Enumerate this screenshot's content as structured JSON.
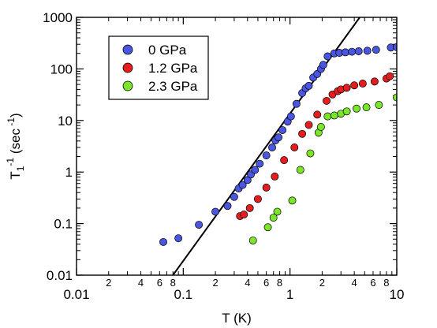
{
  "chart_data": {
    "type": "scatter",
    "xscale": "log",
    "yscale": "log",
    "xlim": [
      0.01,
      10
    ],
    "ylim": [
      0.01,
      1000
    ],
    "xlabel": "T (K)",
    "ylabel": {
      "base": "T",
      "subscript": "1",
      "superscript": "-1",
      "unit_open": "(sec",
      "unit_super": "-1",
      "unit_close": ")"
    },
    "x_major_ticks": [
      {
        "value": 0.01,
        "label": "0.01"
      },
      {
        "value": 0.1,
        "label": "0.1"
      },
      {
        "value": 1,
        "label": "1"
      },
      {
        "value": 10,
        "label": "10"
      }
    ],
    "x_minor_ticks": [
      {
        "value": 0.02,
        "label": "2"
      },
      {
        "value": 0.04,
        "label": "4"
      },
      {
        "value": 0.06,
        "label": "6"
      },
      {
        "value": 0.08,
        "label": "8"
      },
      {
        "value": 0.2,
        "label": "2"
      },
      {
        "value": 0.4,
        "label": "4"
      },
      {
        "value": 0.6,
        "label": "6"
      },
      {
        "value": 0.8,
        "label": "8"
      },
      {
        "value": 2,
        "label": "2"
      },
      {
        "value": 4,
        "label": "4"
      },
      {
        "value": 6,
        "label": "6"
      },
      {
        "value": 8,
        "label": "8"
      }
    ],
    "y_major_ticks": [
      {
        "value": 0.01,
        "label": "0.01"
      },
      {
        "value": 0.1,
        "label": "0.1"
      },
      {
        "value": 1,
        "label": "1"
      },
      {
        "value": 10,
        "label": "10"
      },
      {
        "value": 100,
        "label": "100"
      },
      {
        "value": 1000,
        "label": "1000"
      }
    ],
    "grid": false,
    "legend_position": "top-left",
    "series": [
      {
        "name": "0 GPa",
        "color": "#4a56e0",
        "points": [
          [
            0.065,
            0.044
          ],
          [
            0.09,
            0.052
          ],
          [
            0.14,
            0.095
          ],
          [
            0.2,
            0.17
          ],
          [
            0.26,
            0.22
          ],
          [
            0.3,
            0.33
          ],
          [
            0.33,
            0.48
          ],
          [
            0.36,
            0.56
          ],
          [
            0.4,
            0.7
          ],
          [
            0.43,
            0.9
          ],
          [
            0.47,
            1.1
          ],
          [
            0.52,
            1.45
          ],
          [
            0.6,
            2.1
          ],
          [
            0.68,
            3.0
          ],
          [
            0.73,
            4.1
          ],
          [
            0.78,
            4.7
          ],
          [
            0.85,
            6.5
          ],
          [
            0.95,
            9.5
          ],
          [
            1.02,
            12
          ],
          [
            1.15,
            21
          ],
          [
            1.3,
            34
          ],
          [
            1.4,
            42
          ],
          [
            1.5,
            47
          ],
          [
            1.65,
            68
          ],
          [
            1.8,
            80
          ],
          [
            1.95,
            100
          ],
          [
            2.05,
            120
          ],
          [
            2.25,
            175
          ],
          [
            2.6,
            200
          ],
          [
            2.9,
            205
          ],
          [
            3.3,
            210
          ],
          [
            3.8,
            215
          ],
          [
            4.4,
            220
          ],
          [
            5.3,
            225
          ],
          [
            6.4,
            235
          ],
          [
            8.8,
            260
          ],
          [
            10.0,
            265
          ]
        ]
      },
      {
        "name": "1.2 GPa",
        "color": "#e41e1e",
        "points": [
          [
            0.34,
            0.14
          ],
          [
            0.37,
            0.15
          ],
          [
            0.42,
            0.2
          ],
          [
            0.5,
            0.3
          ],
          [
            0.6,
            0.5
          ],
          [
            0.72,
            0.82
          ],
          [
            0.88,
            1.7
          ],
          [
            1.1,
            3.0
          ],
          [
            1.3,
            5.5
          ],
          [
            1.5,
            8.2
          ],
          [
            1.8,
            13
          ],
          [
            2.2,
            24
          ],
          [
            2.5,
            32
          ],
          [
            2.8,
            37
          ],
          [
            3.0,
            40
          ],
          [
            3.4,
            43
          ],
          [
            4.0,
            48
          ],
          [
            4.8,
            52
          ],
          [
            6.2,
            57
          ],
          [
            8.0,
            65
          ],
          [
            8.6,
            72
          ]
        ]
      },
      {
        "name": "2.3 GPa",
        "color": "#7be52a",
        "points": [
          [
            0.45,
            0.047
          ],
          [
            0.62,
            0.085
          ],
          [
            0.7,
            0.13
          ],
          [
            0.76,
            0.17
          ],
          [
            1.05,
            0.28
          ],
          [
            1.25,
            1.1
          ],
          [
            1.55,
            2.3
          ],
          [
            1.85,
            5.8
          ],
          [
            1.95,
            7.5
          ],
          [
            2.25,
            12
          ],
          [
            2.6,
            12.5
          ],
          [
            3.0,
            13.5
          ],
          [
            3.4,
            15
          ],
          [
            4.2,
            17
          ],
          [
            5.2,
            18
          ],
          [
            6.8,
            20
          ],
          [
            10.0,
            28
          ]
        ]
      }
    ],
    "fit_line": {
      "points": [
        [
          0.08,
          0.01
        ],
        [
          4.5,
          1000
        ]
      ],
      "color": "#000000"
    }
  }
}
